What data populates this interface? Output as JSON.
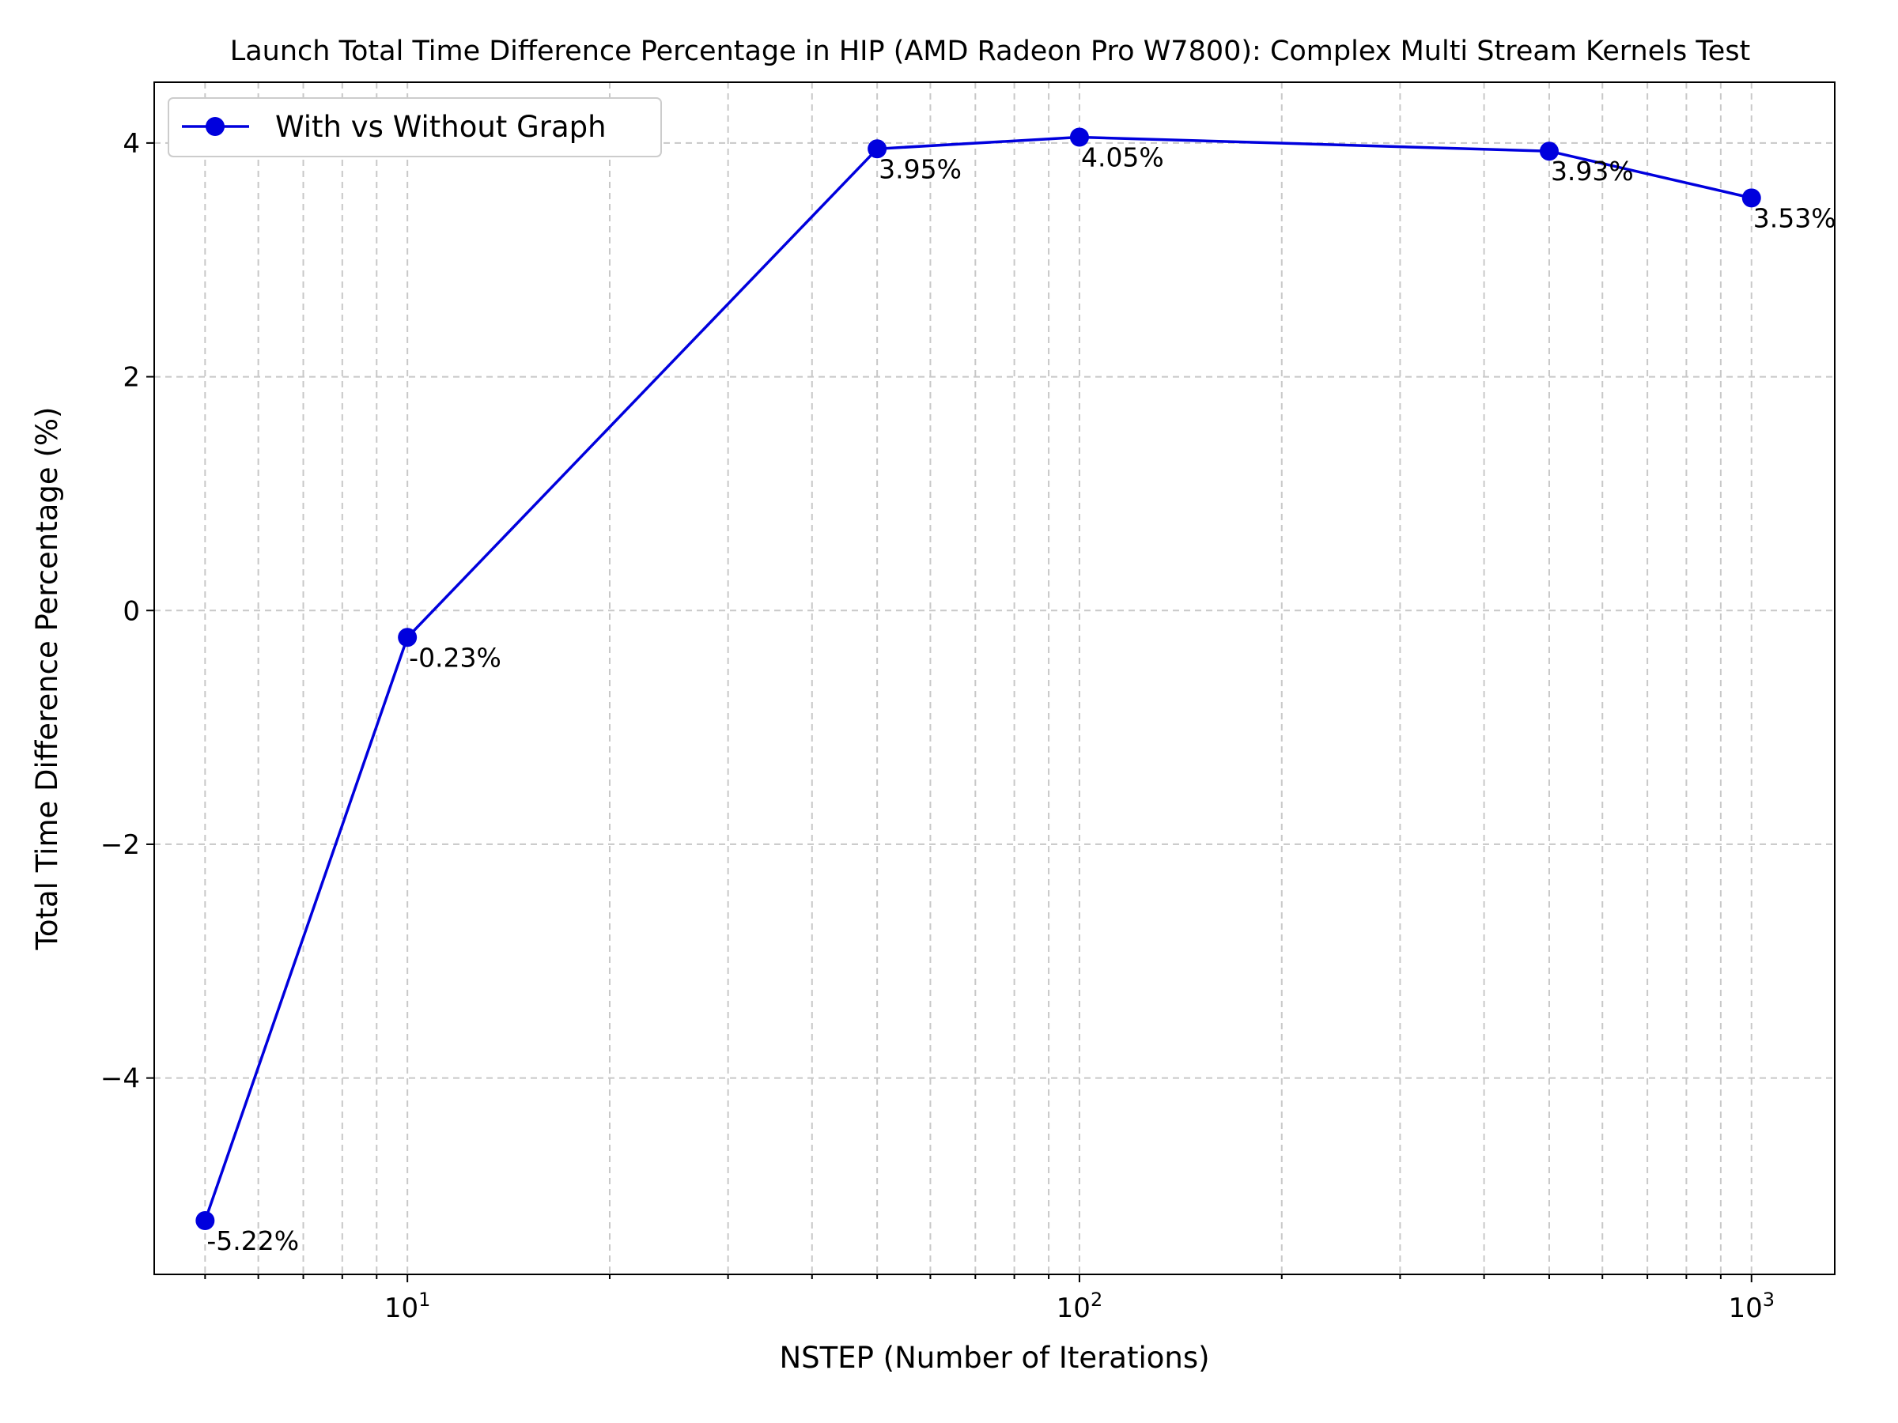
{
  "chart_data": {
    "type": "line",
    "title": "Launch Total Time Difference Percentage in HIP (AMD Radeon Pro W7800): Complex Multi Stream Kernels Test",
    "xlabel": "NSTEP (Number of Iterations)",
    "ylabel": "Total Time Difference Percentage (%)",
    "x_scale": "log",
    "xlim": [
      4.2,
      1330
    ],
    "ylim": [
      -5.68,
      4.52
    ],
    "grid": true,
    "legend_position": "top-left",
    "x_ticks": [
      {
        "value": 10,
        "base": "10",
        "exp": "1"
      },
      {
        "value": 100,
        "base": "10",
        "exp": "2"
      },
      {
        "value": 1000,
        "base": "10",
        "exp": "3"
      }
    ],
    "y_ticks": [
      {
        "value": -4,
        "label": "−4"
      },
      {
        "value": -2,
        "label": "−2"
      },
      {
        "value": 0,
        "label": "0"
      },
      {
        "value": 2,
        "label": "2"
      },
      {
        "value": 4,
        "label": "4"
      }
    ],
    "series": [
      {
        "name": "With vs Without Graph",
        "color": "#0000dd",
        "x": [
          5,
          10,
          50,
          100,
          500,
          1000
        ],
        "y": [
          -5.22,
          -0.23,
          3.95,
          4.05,
          3.93,
          3.53
        ],
        "labels": [
          "-5.22%",
          "-0.23%",
          "3.95%",
          "4.05%",
          "3.93%",
          "3.53%"
        ]
      }
    ]
  }
}
